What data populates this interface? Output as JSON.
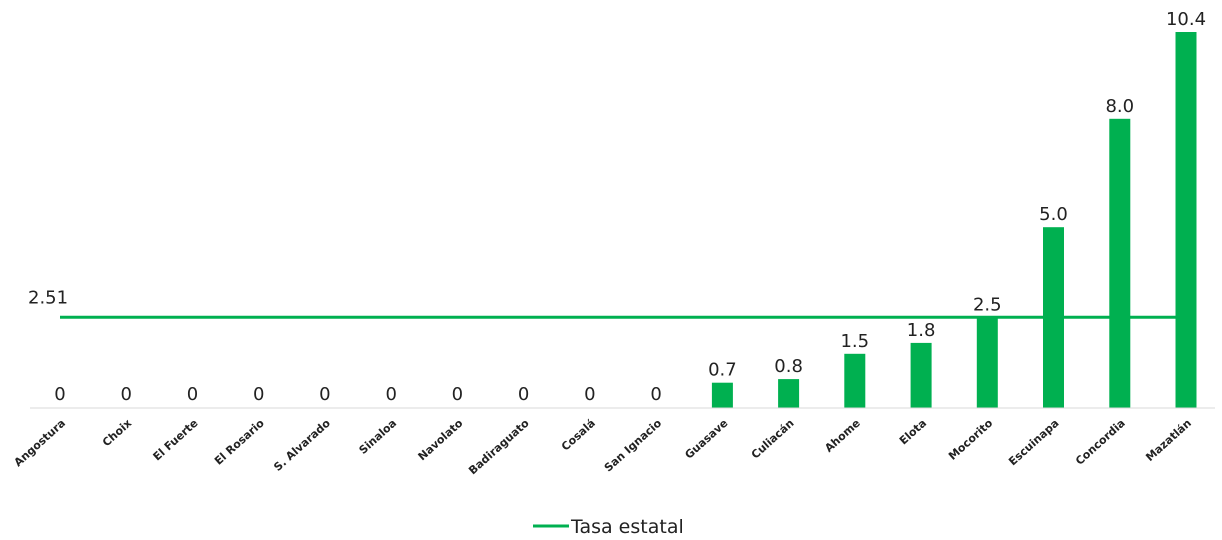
{
  "chart_data": {
    "type": "bar",
    "categories": [
      "Angostura",
      "Choix",
      "El Fuerte",
      "El Rosario",
      "S. Alvarado",
      "Sinaloa",
      "Navolato",
      "Badiraguato",
      "Cosalá",
      "San Ignacio",
      "Guasave",
      "Culiacán",
      "Ahome",
      "Elota",
      "Mocorito",
      "Escuinapa",
      "Concordia",
      "Mazatlán"
    ],
    "values": [
      0,
      0,
      0,
      0,
      0,
      0,
      0,
      0,
      0,
      0,
      0.7,
      0.8,
      1.5,
      1.8,
      2.5,
      5.0,
      8.0,
      10.4
    ],
    "value_labels": [
      "0",
      "0",
      "0",
      "0",
      "0",
      "0",
      "0",
      "0",
      "0",
      "0",
      "0.7",
      "0.8",
      "1.5",
      "1.8",
      "2.5",
      "5.0",
      "8.0",
      "10.4"
    ],
    "reference_line": {
      "name": "Tasa estatal",
      "value": 2.51,
      "label": "2.51"
    },
    "ylim": [
      0,
      10.4
    ],
    "legend": {
      "position": "bottom",
      "entries": [
        "Tasa estatal"
      ]
    },
    "colors": {
      "bar": "#00b050",
      "line": "#00b050"
    },
    "grid": false
  }
}
